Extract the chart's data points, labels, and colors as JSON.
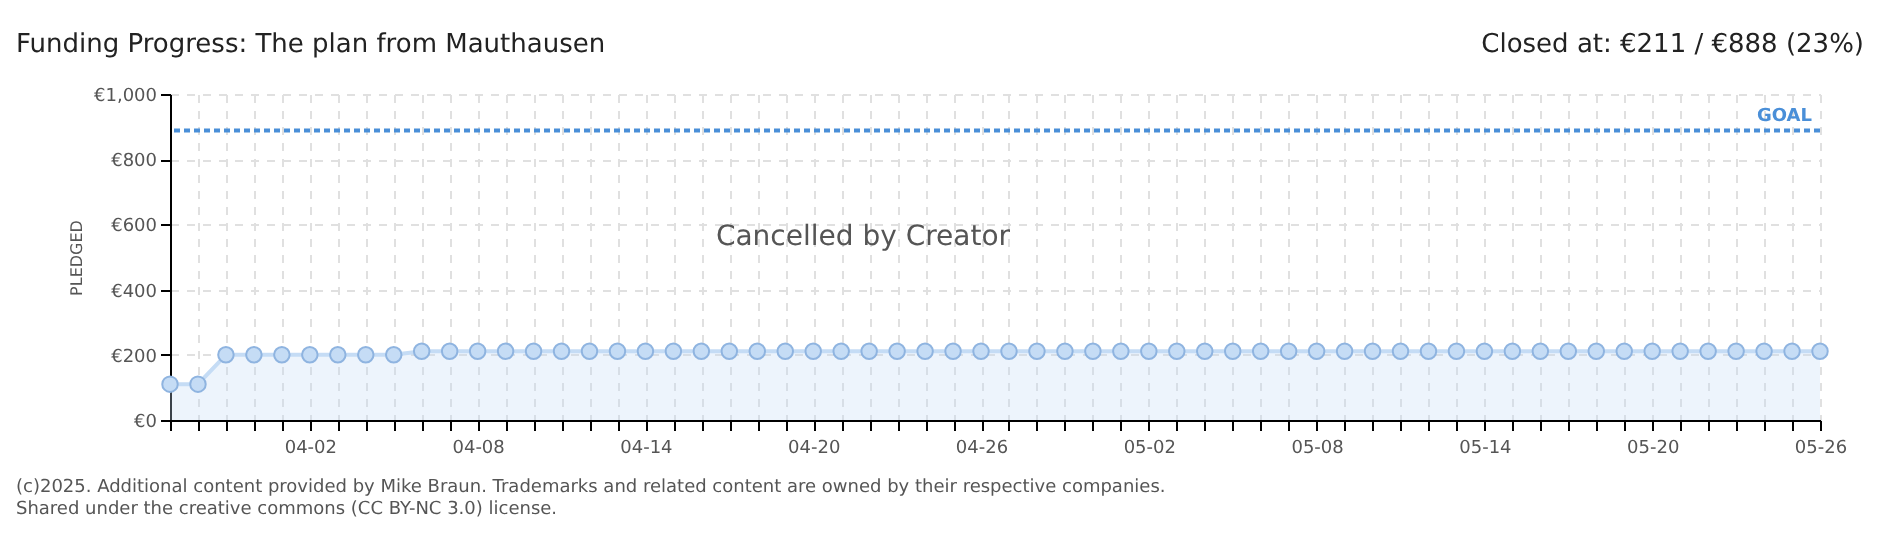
{
  "chart_data": {
    "type": "area",
    "title": "Funding Progress: The plan from Mauthausen",
    "subtitle": "Closed at: €211 / €888 (23%)",
    "ylabel": "PLEDGED",
    "x": [
      "2025-03-28",
      "2025-03-29",
      "2025-03-30",
      "2025-03-31",
      "2025-04-01",
      "2025-04-02",
      "2025-04-03",
      "2025-04-04",
      "2025-04-05",
      "2025-04-06",
      "2025-04-07",
      "2025-04-08",
      "2025-04-09",
      "2025-04-10",
      "2025-04-11",
      "2025-04-12",
      "2025-04-13",
      "2025-04-14",
      "2025-04-15",
      "2025-04-16",
      "2025-04-17",
      "2025-04-18",
      "2025-04-19",
      "2025-04-20",
      "2025-04-21",
      "2025-04-22",
      "2025-04-23",
      "2025-04-24",
      "2025-04-25",
      "2025-04-26",
      "2025-04-27",
      "2025-04-28",
      "2025-04-29",
      "2025-04-30",
      "2025-05-01",
      "2025-05-02",
      "2025-05-03",
      "2025-05-04",
      "2025-05-05",
      "2025-05-06",
      "2025-05-07",
      "2025-05-08",
      "2025-05-09",
      "2025-05-10",
      "2025-05-11",
      "2025-05-12",
      "2025-05-13",
      "2025-05-14",
      "2025-05-15",
      "2025-05-16",
      "2025-05-17",
      "2025-05-18",
      "2025-05-19",
      "2025-05-20",
      "2025-05-21",
      "2025-05-22",
      "2025-05-23",
      "2025-05-24",
      "2025-05-25",
      "2025-05-26"
    ],
    "series": [
      {
        "color": "#c5dcf5",
        "values": [
          110,
          110,
          200,
          200,
          200,
          200,
          200,
          200,
          200,
          211,
          211,
          211,
          211,
          211,
          211,
          211,
          211,
          211,
          211,
          211,
          211,
          211,
          211,
          211,
          211,
          211,
          211,
          211,
          211,
          211,
          211,
          211,
          211,
          211,
          211,
          211,
          211,
          211,
          211,
          211,
          211,
          211,
          211,
          211,
          211,
          211,
          211,
          211,
          211,
          211,
          211,
          211,
          211,
          211,
          211,
          211,
          211,
          211,
          211,
          211
        ]
      }
    ],
    "marker": "circle",
    "xlim": [
      "2025-03-28",
      "2025-05-26"
    ],
    "xticks": [
      {
        "value": "2025-03-28",
        "label": null
      },
      {
        "value": "2025-03-29",
        "label": null
      },
      {
        "value": "2025-03-30",
        "label": null
      },
      {
        "value": "2025-03-31",
        "label": null
      },
      {
        "value": "2025-04-01",
        "label": null
      },
      {
        "value": "2025-04-02",
        "label": "04-02"
      },
      {
        "value": "2025-04-03",
        "label": null
      },
      {
        "value": "2025-04-04",
        "label": null
      },
      {
        "value": "2025-04-05",
        "label": null
      },
      {
        "value": "2025-04-06",
        "label": null
      },
      {
        "value": "2025-04-07",
        "label": null
      },
      {
        "value": "2025-04-08",
        "label": "04-08"
      },
      {
        "value": "2025-04-09",
        "label": null
      },
      {
        "value": "2025-04-10",
        "label": null
      },
      {
        "value": "2025-04-11",
        "label": null
      },
      {
        "value": "2025-04-12",
        "label": null
      },
      {
        "value": "2025-04-13",
        "label": null
      },
      {
        "value": "2025-04-14",
        "label": "04-14"
      },
      {
        "value": "2025-04-15",
        "label": null
      },
      {
        "value": "2025-04-16",
        "label": null
      },
      {
        "value": "2025-04-17",
        "label": null
      },
      {
        "value": "2025-04-18",
        "label": null
      },
      {
        "value": "2025-04-19",
        "label": null
      },
      {
        "value": "2025-04-20",
        "label": "04-20"
      },
      {
        "value": "2025-04-21",
        "label": null
      },
      {
        "value": "2025-04-22",
        "label": null
      },
      {
        "value": "2025-04-23",
        "label": null
      },
      {
        "value": "2025-04-24",
        "label": null
      },
      {
        "value": "2025-04-25",
        "label": null
      },
      {
        "value": "2025-04-26",
        "label": "04-26"
      },
      {
        "value": "2025-04-27",
        "label": null
      },
      {
        "value": "2025-04-28",
        "label": null
      },
      {
        "value": "2025-04-29",
        "label": null
      },
      {
        "value": "2025-04-30",
        "label": null
      },
      {
        "value": "2025-05-01",
        "label": null
      },
      {
        "value": "2025-05-02",
        "label": "05-02"
      },
      {
        "value": "2025-05-03",
        "label": null
      },
      {
        "value": "2025-05-04",
        "label": null
      },
      {
        "value": "2025-05-05",
        "label": null
      },
      {
        "value": "2025-05-06",
        "label": null
      },
      {
        "value": "2025-05-07",
        "label": null
      },
      {
        "value": "2025-05-08",
        "label": "05-08"
      },
      {
        "value": "2025-05-09",
        "label": null
      },
      {
        "value": "2025-05-10",
        "label": null
      },
      {
        "value": "2025-05-11",
        "label": null
      },
      {
        "value": "2025-05-12",
        "label": null
      },
      {
        "value": "2025-05-13",
        "label": null
      },
      {
        "value": "2025-05-14",
        "label": "05-14"
      },
      {
        "value": "2025-05-15",
        "label": null
      },
      {
        "value": "2025-05-16",
        "label": null
      },
      {
        "value": "2025-05-17",
        "label": null
      },
      {
        "value": "2025-05-18",
        "label": null
      },
      {
        "value": "2025-05-19",
        "label": null
      },
      {
        "value": "2025-05-20",
        "label": "05-20"
      },
      {
        "value": "2025-05-21",
        "label": null
      },
      {
        "value": "2025-05-22",
        "label": null
      },
      {
        "value": "2025-05-23",
        "label": null
      },
      {
        "value": "2025-05-24",
        "label": null
      },
      {
        "value": "2025-05-25",
        "label": null
      },
      {
        "value": "2025-05-26",
        "label": "05-26"
      }
    ],
    "ylim": [
      0,
      1000
    ],
    "yticks": [
      {
        "value": 0,
        "label": "€0"
      },
      {
        "value": 200,
        "label": "€200"
      },
      {
        "value": 400,
        "label": "€400"
      },
      {
        "value": 600,
        "label": "€600"
      },
      {
        "value": 800,
        "label": "€800"
      },
      {
        "value": 1000,
        "label": "€1,000"
      }
    ],
    "grid": true,
    "ref_lines": [
      {
        "axis": "y",
        "value": 888,
        "label": "GOAL",
        "color": "#4a8fd8",
        "line_style": "dotted"
      }
    ],
    "annotations": [
      "Cancelled by Creator",
      "(c)2025. Additional content provided by Mike Braun. Trademarks and related content are owned by their respective companies.",
      "Shared under the creative commons (CC BY-NC 3.0) license."
    ]
  }
}
